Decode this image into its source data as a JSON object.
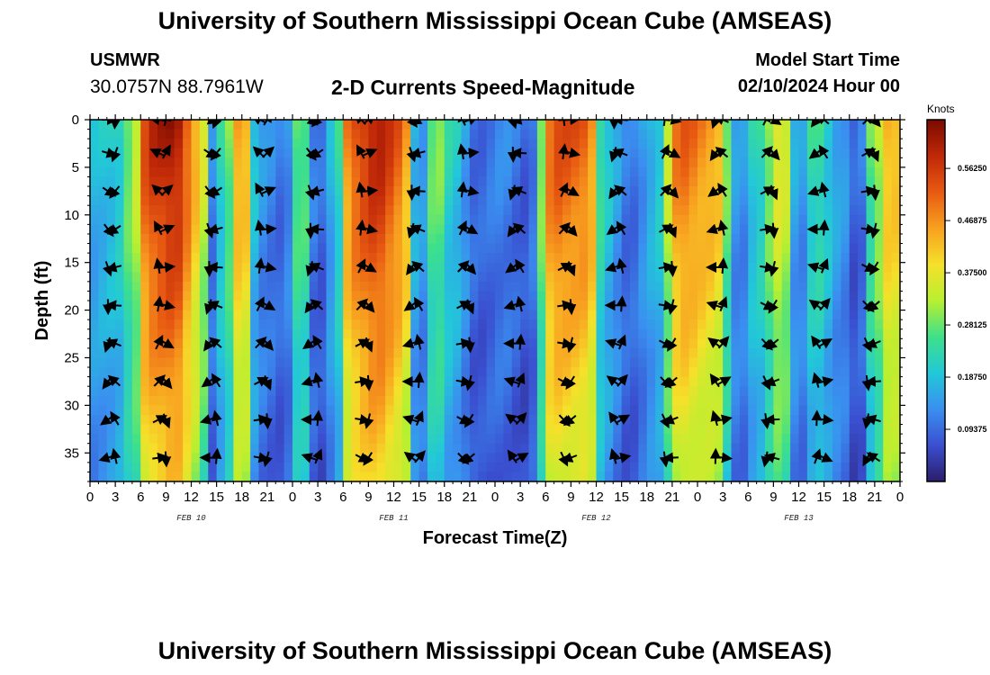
{
  "header": {
    "title": "University of Southern Mississippi Ocean Cube (AMSEAS)",
    "station": "USMWR",
    "coordinates": "30.0757N  88.7961W",
    "subtitle": "2-D Currents Speed-Magnitude",
    "model_start_label": "Model Start Time",
    "model_start_value": "02/10/2024 Hour 00"
  },
  "footer": {
    "title": "University of Southern Mississippi Ocean Cube (AMSEAS)"
  },
  "chart_data": {
    "type": "heatmap",
    "title": "2-D Currents Speed-Magnitude",
    "xlabel": "Forecast Time(Z)",
    "ylabel": "Depth (ft)",
    "x_hours_range": [
      0,
      96
    ],
    "x_ticks": [
      "0",
      "3",
      "6",
      "9",
      "12",
      "15",
      "18",
      "21",
      "0",
      "3",
      "6",
      "9",
      "12",
      "15",
      "18",
      "21",
      "0",
      "3",
      "6",
      "9",
      "12",
      "15",
      "18",
      "21",
      "0",
      "3",
      "6",
      "9",
      "12",
      "15",
      "18",
      "21",
      "0"
    ],
    "day_labels": [
      {
        "label": "FEB 10",
        "hour": 12
      },
      {
        "label": "FEB 11",
        "hour": 36
      },
      {
        "label": "FEB 12",
        "hour": 60
      },
      {
        "label": "FEB 13",
        "hour": 84
      }
    ],
    "y_range": [
      0,
      38
    ],
    "y_ticks": [
      0,
      5,
      10,
      15,
      20,
      25,
      30,
      35
    ],
    "colorbar": {
      "unit": "Knots",
      "range": [
        0,
        0.65
      ],
      "tick_labels": [
        "0.09375",
        "0.18750",
        "0.28125",
        "0.37500",
        "0.46875",
        "0.56250"
      ],
      "tick_values": [
        0.09375,
        0.1875,
        0.28125,
        0.375,
        0.46875,
        0.5625
      ],
      "colors": [
        "#2b1d6b",
        "#3a4fd0",
        "#3a8ff0",
        "#22c8d8",
        "#3ee08a",
        "#b8f030",
        "#f6e02a",
        "#f8a020",
        "#e85a12",
        "#c02808",
        "#7a0a00"
      ]
    },
    "speed_knots_by_hour": [
      {
        "hour": 0,
        "speed": 0.17
      },
      {
        "hour": 3,
        "speed": 0.2
      },
      {
        "hour": 5,
        "speed": 0.3
      },
      {
        "hour": 7,
        "speed": 0.56
      },
      {
        "hour": 10,
        "speed": 0.6
      },
      {
        "hour": 13,
        "speed": 0.42
      },
      {
        "hour": 14.5,
        "speed": 0.12
      },
      {
        "hour": 16,
        "speed": 0.25
      },
      {
        "hour": 18,
        "speed": 0.48
      },
      {
        "hour": 20,
        "speed": 0.14
      },
      {
        "hour": 23,
        "speed": 0.1
      },
      {
        "hour": 25,
        "speed": 0.3
      },
      {
        "hour": 27,
        "speed": 0.08
      },
      {
        "hour": 29,
        "speed": 0.18
      },
      {
        "hour": 31,
        "speed": 0.52
      },
      {
        "hour": 34,
        "speed": 0.58
      },
      {
        "hour": 37,
        "speed": 0.5
      },
      {
        "hour": 39,
        "speed": 0.12
      },
      {
        "hour": 41,
        "speed": 0.3
      },
      {
        "hour": 43,
        "speed": 0.2
      },
      {
        "hour": 46,
        "speed": 0.09
      },
      {
        "hour": 49,
        "speed": 0.12
      },
      {
        "hour": 52,
        "speed": 0.08
      },
      {
        "hour": 55,
        "speed": 0.52
      },
      {
        "hour": 59,
        "speed": 0.5
      },
      {
        "hour": 61,
        "speed": 0.2
      },
      {
        "hour": 64,
        "speed": 0.1
      },
      {
        "hour": 67,
        "speed": 0.18
      },
      {
        "hour": 70,
        "speed": 0.5
      },
      {
        "hour": 74,
        "speed": 0.45
      },
      {
        "hour": 77,
        "speed": 0.12
      },
      {
        "hour": 79,
        "speed": 0.22
      },
      {
        "hour": 82,
        "speed": 0.38
      },
      {
        "hour": 84,
        "speed": 0.12
      },
      {
        "hour": 86,
        "speed": 0.25
      },
      {
        "hour": 89,
        "speed": 0.15
      },
      {
        "hour": 91,
        "speed": 0.07
      },
      {
        "hour": 93,
        "speed": 0.3
      },
      {
        "hour": 95,
        "speed": 0.45
      },
      {
        "hour": 96,
        "speed": 0.4
      }
    ],
    "vector_depths_ft": [
      0,
      3.5,
      7.5,
      11.5,
      15.5,
      19.5,
      23.5,
      27.5,
      31.5,
      35.5
    ],
    "vector_hour_step": 3
  },
  "colors": {
    "arrow": "#000000",
    "axis": "#000000",
    "background": "#ffffff"
  }
}
